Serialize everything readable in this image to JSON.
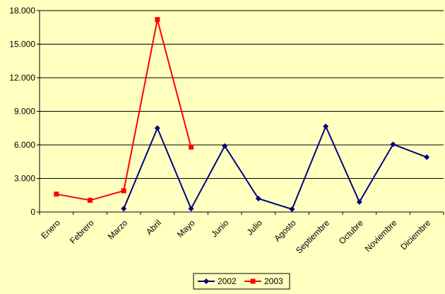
{
  "chart_data": {
    "type": "line",
    "categories": [
      "Enero",
      "Febrero",
      "Marzo",
      "Abril",
      "Mayo",
      "Junio",
      "Julio",
      "Agosto",
      "Septiembre",
      "Octubre",
      "Noviembre",
      "Diciembre"
    ],
    "y_ticks": [
      "0",
      "3.000",
      "6.000",
      "9.000",
      "12.000",
      "15.000",
      "18.000"
    ],
    "ylim": [
      0,
      18000
    ],
    "grid": true,
    "legend_position": "bottom",
    "series": [
      {
        "name": "2002",
        "color": "#000080",
        "marker": "diamond",
        "values": [
          null,
          null,
          300,
          7500,
          300,
          5900,
          1200,
          250,
          7650,
          900,
          6050,
          4900
        ]
      },
      {
        "name": "2003",
        "color": "#ff0000",
        "marker": "square",
        "values": [
          1600,
          1050,
          1900,
          17200,
          5800,
          null,
          null,
          null,
          null,
          null,
          null,
          null
        ]
      }
    ]
  }
}
